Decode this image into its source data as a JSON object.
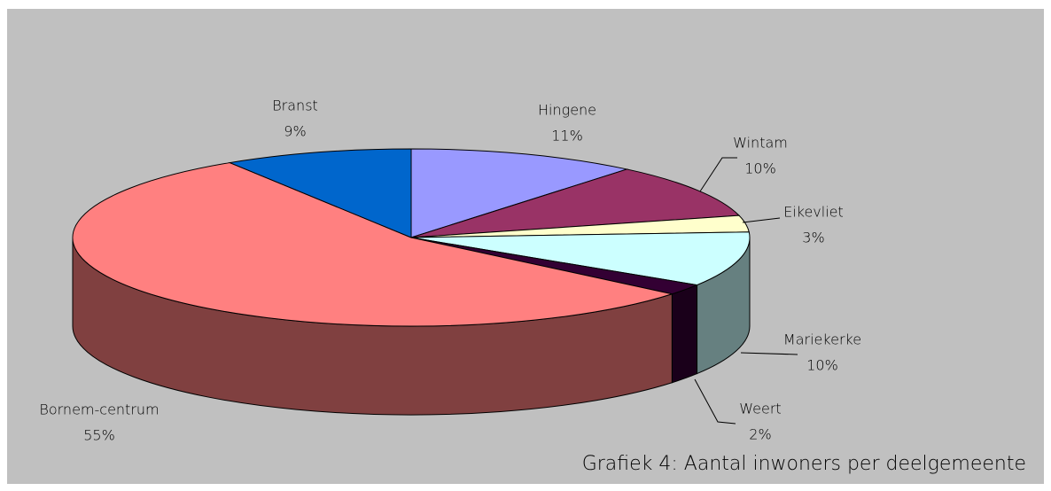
{
  "chart_data": {
    "type": "pie",
    "title": "Grafiek 4: Aantal inwoners per deelgemeente",
    "categories": [
      "Hingene",
      "Wintam",
      "Eikevliet",
      "Mariekerke",
      "Weert",
      "Bornem-centrum",
      "Branst"
    ],
    "values": [
      11,
      10,
      3,
      10,
      2,
      55,
      9
    ],
    "value_labels": [
      "11%",
      "10%",
      "3%",
      "10%",
      "2%",
      "55%",
      "9%"
    ],
    "colors": [
      "#9999ff",
      "#993366",
      "#ffffcc",
      "#ccffff",
      "#330033",
      "#ff8080",
      "#0066cc"
    ]
  }
}
